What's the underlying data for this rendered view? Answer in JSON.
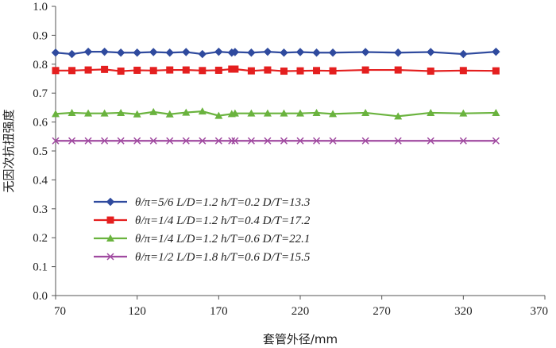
{
  "chart_data": {
    "type": "line",
    "title": "",
    "xlabel": "套管外径/mm",
    "ylabel": "无因次抗扭强度",
    "xlim": [
      70,
      370
    ],
    "ylim": [
      0.0,
      1.0
    ],
    "xticks": [
      "70",
      "120",
      "170",
      "220",
      "270",
      "320",
      "370"
    ],
    "yticks": [
      "0.0",
      "0.1",
      "0.2",
      "0.3",
      "0.4",
      "0.5",
      "0.6",
      "0.7",
      "0.8",
      "0.9",
      "1.0"
    ],
    "legend_position": "lower-left",
    "series": [
      {
        "name": "θ/π=5/6  L/D=1.2  h/T=0.2  D/T=13.3",
        "color": "#2f4a9e",
        "marker": "diamond",
        "x": [
          70,
          80,
          90,
          100,
          110,
          120,
          130,
          140,
          150,
          160,
          170,
          178,
          180,
          190,
          200,
          210,
          220,
          230,
          240,
          260,
          280,
          300,
          320,
          340
        ],
        "y": [
          0.84,
          0.835,
          0.843,
          0.843,
          0.84,
          0.84,
          0.842,
          0.84,
          0.842,
          0.835,
          0.843,
          0.84,
          0.842,
          0.84,
          0.843,
          0.84,
          0.842,
          0.84,
          0.84,
          0.842,
          0.84,
          0.842,
          0.835,
          0.843
        ]
      },
      {
        "name": "θ/π=1/4  L/D=1.2  h/T=0.4  D/T=17.2",
        "color": "#e41f1f",
        "marker": "square",
        "x": [
          70,
          80,
          90,
          100,
          110,
          120,
          130,
          140,
          150,
          160,
          170,
          178,
          180,
          190,
          200,
          210,
          220,
          230,
          240,
          260,
          280,
          300,
          320,
          340
        ],
        "y": [
          0.778,
          0.778,
          0.78,
          0.782,
          0.776,
          0.779,
          0.778,
          0.78,
          0.78,
          0.778,
          0.779,
          0.783,
          0.783,
          0.777,
          0.78,
          0.776,
          0.777,
          0.778,
          0.777,
          0.78,
          0.78,
          0.776,
          0.778,
          0.777
        ]
      },
      {
        "name": "θ/π=1/4  L/D=1.2  h/T=0.6  D/T=22.1",
        "color": "#6ab33e",
        "marker": "triangle",
        "x": [
          70,
          80,
          90,
          100,
          110,
          120,
          130,
          140,
          150,
          160,
          170,
          178,
          180,
          190,
          200,
          210,
          220,
          230,
          240,
          260,
          280,
          300,
          320,
          340
        ],
        "y": [
          0.628,
          0.632,
          0.63,
          0.63,
          0.632,
          0.627,
          0.635,
          0.627,
          0.633,
          0.637,
          0.622,
          0.628,
          0.63,
          0.63,
          0.63,
          0.63,
          0.63,
          0.632,
          0.628,
          0.632,
          0.62,
          0.632,
          0.63,
          0.632
        ]
      },
      {
        "name": "θ/π=1/2  L/D=1.8  h/T=0.6  D/T=15.5",
        "color": "#a04aa0",
        "marker": "x",
        "x": [
          70,
          80,
          90,
          100,
          110,
          120,
          130,
          140,
          150,
          160,
          170,
          178,
          180,
          190,
          200,
          210,
          220,
          230,
          240,
          260,
          280,
          300,
          320,
          340
        ],
        "y": [
          0.535,
          0.535,
          0.535,
          0.535,
          0.535,
          0.535,
          0.535,
          0.535,
          0.535,
          0.535,
          0.535,
          0.535,
          0.535,
          0.535,
          0.535,
          0.535,
          0.535,
          0.535,
          0.535,
          0.535,
          0.535,
          0.535,
          0.535,
          0.535
        ]
      }
    ]
  }
}
